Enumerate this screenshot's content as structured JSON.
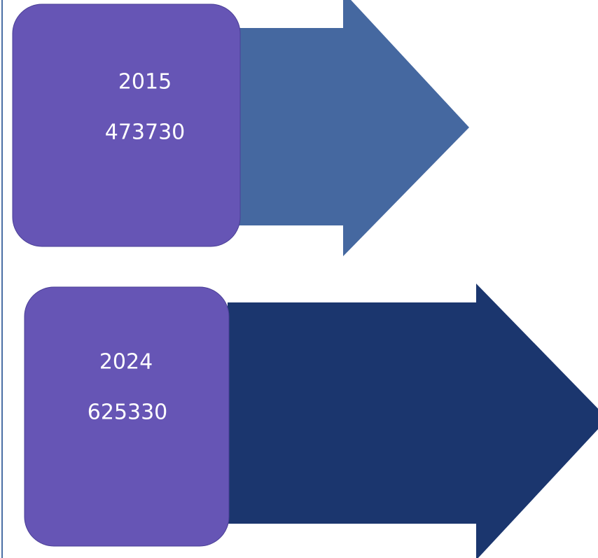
{
  "items": [
    {
      "year": 2015,
      "value": 473730
    },
    {
      "year": 2024,
      "value": 625330
    }
  ]
}
